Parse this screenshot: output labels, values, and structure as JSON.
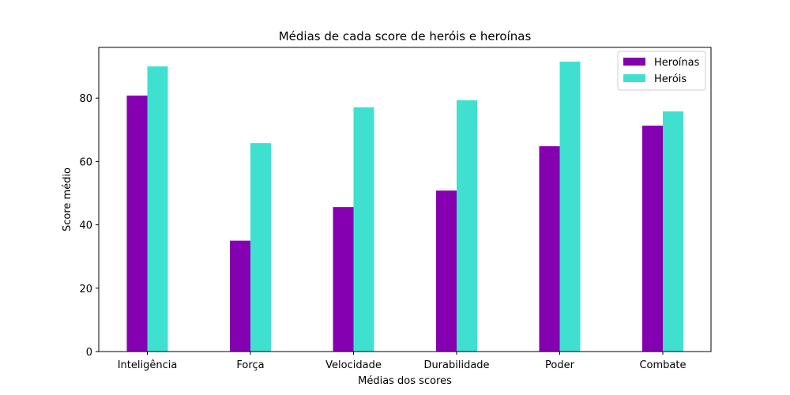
{
  "chart_data": {
    "type": "bar",
    "title": "Médias de cada score de heróis e heroínas",
    "xlabel": "Médias dos scores",
    "ylabel": "Score médio",
    "categories": [
      "Inteligência",
      "Força",
      "Velocidade",
      "Durabilidade",
      "Poder",
      "Combate"
    ],
    "series": [
      {
        "name": "Heroínas",
        "color": "#8400b0",
        "values": [
          80.8,
          35.0,
          45.6,
          50.8,
          64.8,
          71.3
        ]
      },
      {
        "name": "Heróis",
        "color": "#40e0d0",
        "values": [
          90.0,
          65.8,
          77.1,
          79.3,
          91.5,
          75.8
        ]
      }
    ],
    "ylim": [
      0,
      96
    ],
    "yticks": [
      0,
      20,
      40,
      60,
      80
    ],
    "grid": false,
    "legend_position": "top-right"
  }
}
